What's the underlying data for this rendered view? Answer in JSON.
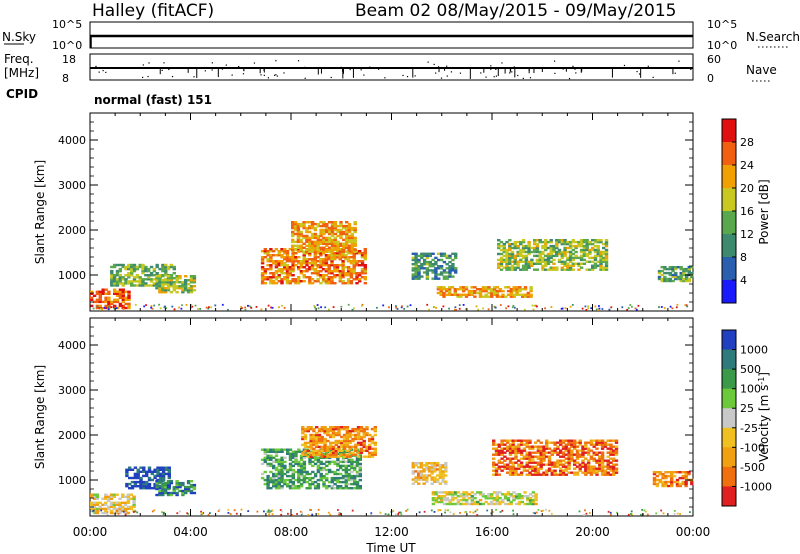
{
  "header": {
    "station": "Halley (fitACF)",
    "beam_info": "Beam 02  08/May/2015 - 09/May/2015"
  },
  "panels": {
    "nsky": {
      "label": "N.Sky",
      "right_label": "N.Search",
      "ticks_left": [
        "10^5",
        "10^0"
      ],
      "ticks_right": [
        "10^5",
        "10^0"
      ]
    },
    "freq": {
      "label_line1": "Freq.",
      "label_line2": "[MHz]",
      "right_label": "Nave",
      "ticks_left": [
        "18",
        "8"
      ],
      "ticks_right": [
        "60",
        "0"
      ]
    },
    "cpid": {
      "label": "CPID",
      "text": "normal (fast) 151"
    }
  },
  "chart_data": [
    {
      "type": "heatmap",
      "name": "power",
      "ylabel": "Slant Range [km]",
      "xlabel": "",
      "x_ticks": [
        "00:00",
        "04:00",
        "08:00",
        "12:00",
        "16:00",
        "20:00",
        "00:00"
      ],
      "y_ticks": [
        1000,
        2000,
        3000,
        4000
      ],
      "ylim": [
        200,
        4600
      ],
      "xlim_hours": [
        0,
        24
      ],
      "colorbar": {
        "label": "Power [dB]",
        "ticks": [
          "4",
          "8",
          "12",
          "16",
          "20",
          "24",
          "28"
        ],
        "range": [
          0,
          30
        ],
        "colors": [
          "#1a1aff",
          "#2a5fb0",
          "#3e8a6e",
          "#5aa84e",
          "#c8c820",
          "#f0a000",
          "#f06010",
          "#e01010"
        ]
      },
      "echo_regions": [
        {
          "t0": 0.0,
          "t1": 1.6,
          "r0": 250,
          "r1": 700,
          "level": 0.8
        },
        {
          "t0": 0.8,
          "t1": 3.4,
          "r0": 750,
          "r1": 1250,
          "level": 0.45
        },
        {
          "t0": 2.6,
          "t1": 4.2,
          "r0": 600,
          "r1": 1000,
          "level": 0.5
        },
        {
          "t0": 6.8,
          "t1": 11.0,
          "r0": 800,
          "r1": 1600,
          "level": 0.75
        },
        {
          "t0": 8.0,
          "t1": 10.6,
          "r0": 1500,
          "r1": 2200,
          "level": 0.7
        },
        {
          "t0": 12.8,
          "t1": 14.6,
          "r0": 900,
          "r1": 1500,
          "level": 0.35
        },
        {
          "t0": 13.8,
          "t1": 17.6,
          "r0": 500,
          "r1": 750,
          "level": 0.7
        },
        {
          "t0": 16.2,
          "t1": 20.6,
          "r0": 1100,
          "r1": 1800,
          "level": 0.5
        },
        {
          "t0": 22.6,
          "t1": 24.0,
          "r0": 850,
          "r1": 1200,
          "level": 0.4
        }
      ]
    },
    {
      "type": "heatmap",
      "name": "velocity",
      "ylabel": "Slant Range [km]",
      "xlabel": "Time UT",
      "x_ticks": [
        "00:00",
        "04:00",
        "08:00",
        "12:00",
        "16:00",
        "20:00",
        "00:00"
      ],
      "y_ticks": [
        1000,
        2000,
        3000,
        4000
      ],
      "ylim": [
        200,
        4600
      ],
      "xlim_hours": [
        0,
        24
      ],
      "colorbar": {
        "label": "Velocity [m s^-1]",
        "ticks": [
          "1000",
          "500",
          "100",
          "25",
          "-25",
          "-100",
          "-500",
          "-1000"
        ],
        "colors": [
          "#2040c0",
          "#2f7a7a",
          "#3a9a4a",
          "#6cc93a",
          "#c8c8c8",
          "#f0c020",
          "#f0a010",
          "#f07010",
          "#e02020"
        ]
      },
      "echo_regions": [
        {
          "t0": 0.0,
          "t1": 1.8,
          "r0": 250,
          "r1": 700,
          "level": 0.6
        },
        {
          "t0": 1.4,
          "t1": 3.2,
          "r0": 800,
          "r1": 1300,
          "level": 0.05
        },
        {
          "t0": 2.6,
          "t1": 4.2,
          "r0": 650,
          "r1": 1000,
          "level": 0.2
        },
        {
          "t0": 6.8,
          "t1": 10.8,
          "r0": 800,
          "r1": 1700,
          "level": 0.3
        },
        {
          "t0": 8.4,
          "t1": 11.4,
          "r0": 1500,
          "r1": 2200,
          "level": 0.75
        },
        {
          "t0": 12.8,
          "t1": 14.2,
          "r0": 900,
          "r1": 1400,
          "level": 0.62
        },
        {
          "t0": 13.6,
          "t1": 17.8,
          "r0": 450,
          "r1": 750,
          "level": 0.5
        },
        {
          "t0": 16.0,
          "t1": 21.0,
          "r0": 1100,
          "r1": 1900,
          "level": 0.82
        },
        {
          "t0": 22.4,
          "t1": 24.0,
          "r0": 850,
          "r1": 1200,
          "level": 0.8
        }
      ]
    }
  ]
}
